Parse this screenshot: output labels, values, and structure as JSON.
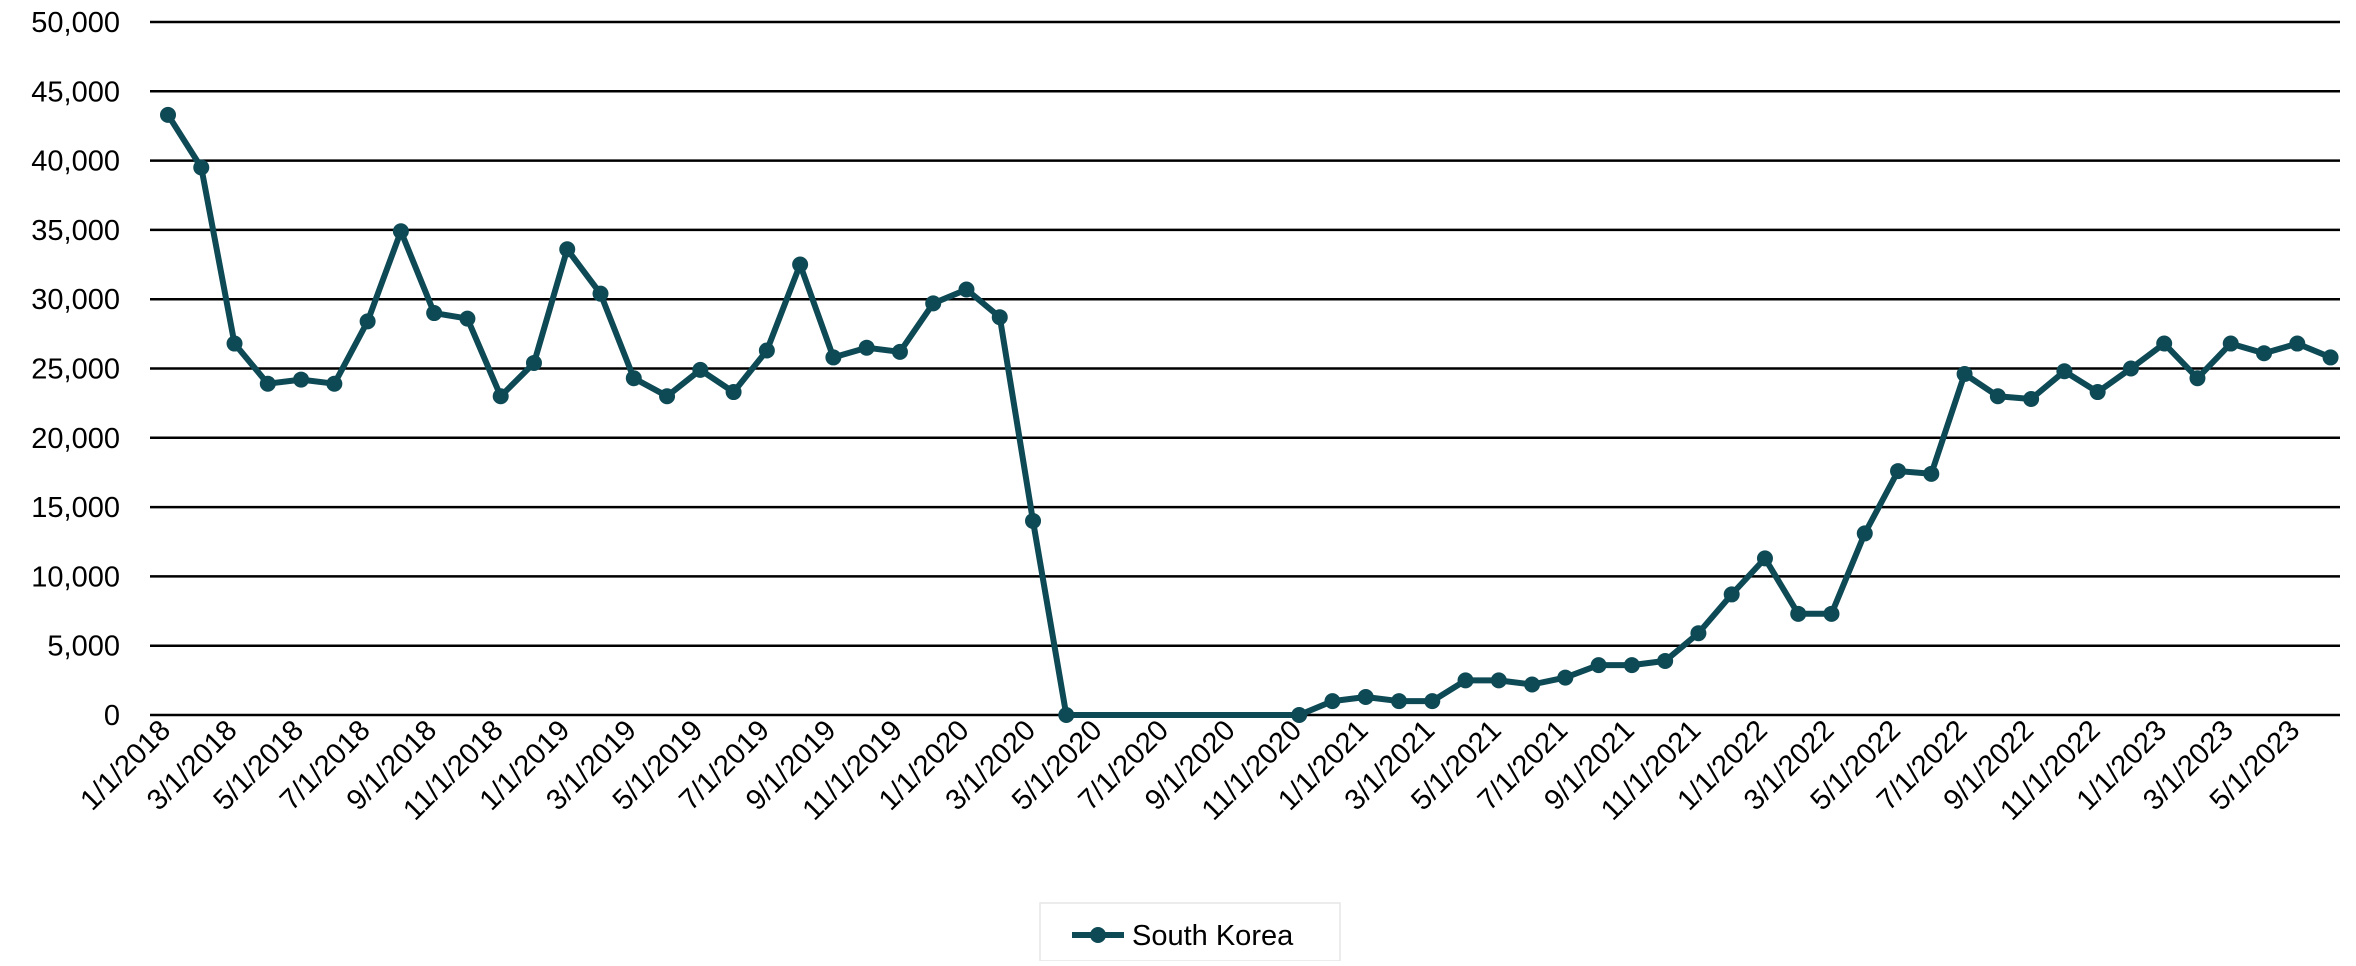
{
  "chart_data": {
    "type": "line",
    "title": "",
    "xlabel": "",
    "ylabel": "",
    "ylim": [
      0,
      50000
    ],
    "yticks": [
      "0",
      "5,000",
      "10,000",
      "15,000",
      "20,000",
      "25,000",
      "30,000",
      "35,000",
      "40,000",
      "45,000",
      "50,000"
    ],
    "grid": true,
    "legend_position": "bottom",
    "categories": [
      "1/1/2018",
      "2/1/2018",
      "3/1/2018",
      "4/1/2018",
      "5/1/2018",
      "6/1/2018",
      "7/1/2018",
      "8/1/2018",
      "9/1/2018",
      "10/1/2018",
      "11/1/2018",
      "12/1/2018",
      "1/1/2019",
      "2/1/2019",
      "3/1/2019",
      "4/1/2019",
      "5/1/2019",
      "6/1/2019",
      "7/1/2019",
      "8/1/2019",
      "9/1/2019",
      "10/1/2019",
      "11/1/2019",
      "12/1/2019",
      "1/1/2020",
      "2/1/2020",
      "3/1/2020",
      "4/1/2020",
      "5/1/2020",
      "6/1/2020",
      "7/1/2020",
      "8/1/2020",
      "9/1/2020",
      "10/1/2020",
      "11/1/2020",
      "12/1/2020",
      "1/1/2021",
      "2/1/2021",
      "3/1/2021",
      "4/1/2021",
      "5/1/2021",
      "6/1/2021",
      "7/1/2021",
      "8/1/2021",
      "9/1/2021",
      "10/1/2021",
      "11/1/2021",
      "12/1/2021",
      "1/1/2022",
      "2/1/2022",
      "3/1/2022",
      "4/1/2022",
      "5/1/2022",
      "6/1/2022",
      "7/1/2022",
      "8/1/2022",
      "9/1/2022",
      "10/1/2022",
      "11/1/2022",
      "12/1/2022",
      "1/1/2023",
      "2/1/2023",
      "3/1/2023",
      "4/1/2023",
      "5/1/2023",
      "6/1/2023"
    ],
    "tick_labels": [
      "1/1/2018",
      "3/1/2018",
      "5/1/2018",
      "7/1/2018",
      "9/1/2018",
      "11/1/2018",
      "1/1/2019",
      "3/1/2019",
      "5/1/2019",
      "7/1/2019",
      "9/1/2019",
      "11/1/2019",
      "1/1/2020",
      "3/1/2020",
      "5/1/2020",
      "7/1/2020",
      "9/1/2020",
      "11/1/2020",
      "1/1/2021",
      "3/1/2021",
      "5/1/2021",
      "7/1/2021",
      "9/1/2021",
      "11/1/2021",
      "1/1/2022",
      "3/1/2022",
      "5/1/2022",
      "7/1/2022",
      "9/1/2022",
      "11/1/2022",
      "1/1/2023",
      "3/1/2023",
      "5/1/2023"
    ],
    "series": [
      {
        "name": "South Korea",
        "color": "#0e4a55",
        "values": [
          43300,
          39500,
          26800,
          23900,
          24200,
          23900,
          28400,
          34900,
          29000,
          28600,
          23000,
          25400,
          33600,
          30400,
          24300,
          23000,
          24900,
          23300,
          26300,
          32500,
          25800,
          26500,
          26200,
          29700,
          30700,
          28700,
          14000,
          0,
          null,
          null,
          null,
          null,
          null,
          null,
          0,
          1000,
          1300,
          1000,
          1000,
          2500,
          2500,
          2200,
          2700,
          3600,
          3600,
          3900,
          5900,
          8700,
          11300,
          7300,
          7300,
          13100,
          17600,
          17400,
          24600,
          23000,
          22800,
          24800,
          23300,
          25000,
          26800,
          24300,
          26800,
          26100,
          26800,
          25800
        ]
      }
    ]
  }
}
